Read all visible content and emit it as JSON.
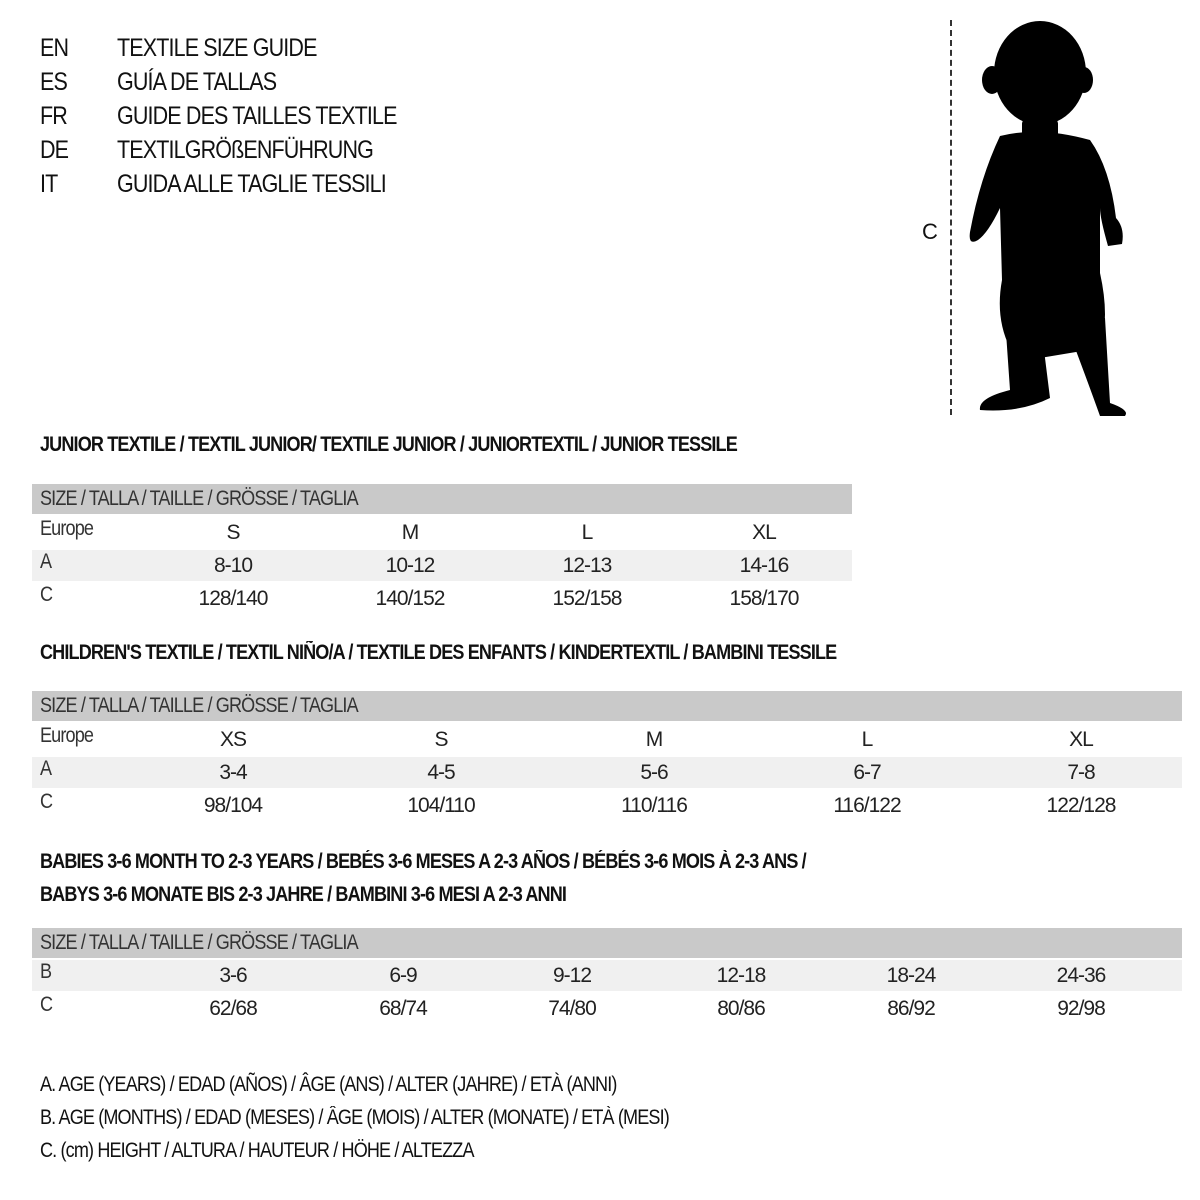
{
  "languages": [
    {
      "code": "EN",
      "title": "TEXTILE SIZE GUIDE"
    },
    {
      "code": "ES",
      "title": "GUÍA DE TALLAS"
    },
    {
      "code": "FR",
      "title": "GUIDE DES TAILLES TEXTILE"
    },
    {
      "code": "DE",
      "title": "TEXTILGRÖßENFÜHRUNG"
    },
    {
      "code": "IT",
      "title": "GUIDA ALLE TAGLIE TESSILI"
    }
  ],
  "figure": {
    "height_label": "C",
    "icon": "child-silhouette-icon"
  },
  "sections": [
    {
      "title_lines": [
        "JUNIOR TEXTILE / TEXTIL JUNIOR/ TEXTILE JUNIOR / JUNIORTEXTIL / JUNIOR TESSILE"
      ],
      "header": "SIZE / TALLA / TAILLE / GRÖSSE / TAGLIA",
      "rows": [
        {
          "label": "Europe",
          "values": [
            "S",
            "M",
            "L",
            "XL"
          ]
        },
        {
          "label": "A",
          "values": [
            "8-10",
            "10-12",
            "12-13",
            "14-16"
          ]
        },
        {
          "label": "C",
          "values": [
            "128/140",
            "140/152",
            "152/158",
            "158/170"
          ]
        }
      ]
    },
    {
      "title_lines": [
        "CHILDREN'S TEXTILE / TEXTIL NIÑO/A / TEXTILE DES ENFANTS / KINDERTEXTIL / BAMBINI TESSILE"
      ],
      "header": "SIZE / TALLA / TAILLE / GRÖSSE / TAGLIA",
      "rows": [
        {
          "label": "Europe",
          "values": [
            "XS",
            "S",
            "M",
            "L",
            "XL"
          ]
        },
        {
          "label": "A",
          "values": [
            "3-4",
            "4-5",
            "5-6",
            "6-7",
            "7-8"
          ]
        },
        {
          "label": "C",
          "values": [
            "98/104",
            "104/110",
            "110/116",
            "116/122",
            "122/128"
          ]
        }
      ]
    },
    {
      "title_lines": [
        "BABIES 3-6 MONTH TO 2-3 YEARS / BEBÉS 3-6 MESES A 2-3 AÑOS / BÉBÉS 3-6 MOIS À 2-3 ANS /",
        "BABYS 3-6 MONATE BIS 2-3 JAHRE / BAMBINI 3-6 MESI A 2-3 ANNI"
      ],
      "header": "SIZE / TALLA / TAILLE / GRÖSSE / TAGLIA",
      "rows": [
        {
          "label": "B",
          "values": [
            "3-6",
            "6-9",
            "9-12",
            "12-18",
            "18-24",
            "24-36"
          ]
        },
        {
          "label": "C",
          "values": [
            "62/68",
            "68/74",
            "74/80",
            "80/86",
            "86/92",
            "92/98"
          ]
        }
      ]
    }
  ],
  "legend": [
    "A. AGE (YEARS) / EDAD (AÑOS) / ÂGE (ANS) / ALTER (JAHRE) / ETÀ (ANNI)",
    "B. AGE (MONTHS) / EDAD (MESES) / ÂGE (MOIS) / ALTER (MONATE) / ETÀ (MESI)",
    "C. (cm) HEIGHT / ALTURA / HAUTEUR / HÖHE / ALTEZZA"
  ]
}
